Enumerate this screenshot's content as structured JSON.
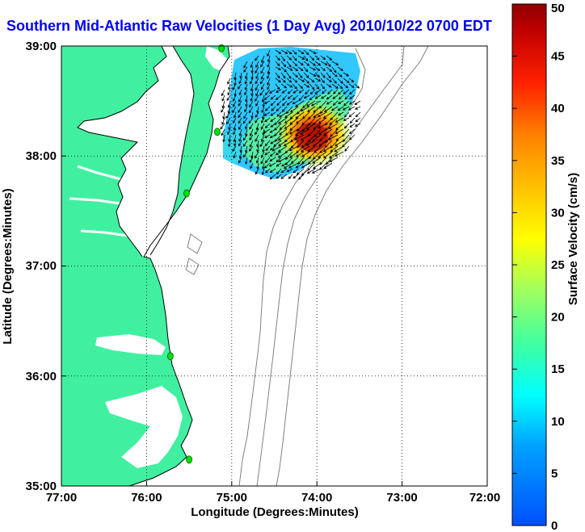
{
  "title": "Southern Mid-Atlantic Raw Velocities (1 Day Avg) 2010/10/22 0700 EDT",
  "x_axis": {
    "label": "Longitude (Degrees:Minutes)",
    "ticks": [
      "77:00",
      "76:00",
      "75:00",
      "74:00",
      "73:00",
      "72:00"
    ]
  },
  "y_axis": {
    "label": "Latitude (Degrees:Minutes)",
    "ticks": [
      "39:00",
      "38:00",
      "37:00",
      "36:00",
      "35:00"
    ]
  },
  "colorbar": {
    "label": "Surface Velocity (cm/s)",
    "ticks": [
      "0",
      "5",
      "10",
      "15",
      "20",
      "25",
      "30",
      "35",
      "40",
      "45",
      "50"
    ],
    "min": 0,
    "max": 50
  },
  "colors": {
    "land": "#40f0a0",
    "water": "#ffffff",
    "title": "#0000ff",
    "grid": "#000000",
    "isobath": "#808080",
    "station": "#00e000"
  },
  "map": {
    "lon_range": [
      -77,
      -72
    ],
    "lat_range": [
      35,
      39
    ],
    "grid": "dotted",
    "stations": [
      {
        "lon": -75.12,
        "lat": 38.98
      },
      {
        "lon": -75.17,
        "lat": 38.22
      },
      {
        "lon": -75.53,
        "lat": 37.66
      },
      {
        "lon": -75.72,
        "lat": 36.18
      },
      {
        "lon": -75.5,
        "lat": 35.24
      }
    ]
  }
}
